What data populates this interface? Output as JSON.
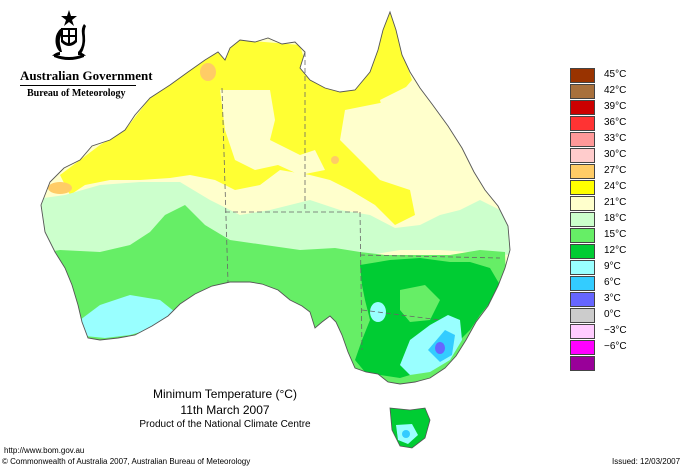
{
  "header": {
    "government": "Australian Government",
    "bureau": "Bureau of Meteorology"
  },
  "map": {
    "title": "Minimum Temperature (°C)",
    "date": "11th March 2007",
    "product": "Product of the National Climate Centre",
    "background": "#ffffff",
    "ocean": "white",
    "border_color": "#555555"
  },
  "legend": {
    "items": [
      {
        "label": "45°C",
        "color": "#993300"
      },
      {
        "label": "42°C",
        "color": "#a8703c"
      },
      {
        "label": "39°C",
        "color": "#cc0000"
      },
      {
        "label": "36°C",
        "color": "#ff3333"
      },
      {
        "label": "33°C",
        "color": "#ff9999"
      },
      {
        "label": "30°C",
        "color": "#ffcccc"
      },
      {
        "label": "27°C",
        "color": "#ffcc66"
      },
      {
        "label": "24°C",
        "color": "#ffff00"
      },
      {
        "label": "21°C",
        "color": "#ffffcc"
      },
      {
        "label": "18°C",
        "color": "#ccffcc"
      },
      {
        "label": "15°C",
        "color": "#66ee66"
      },
      {
        "label": "12°C",
        "color": "#00cc33"
      },
      {
        "label": "9°C",
        "color": "#99ffff"
      },
      {
        "label": "6°C",
        "color": "#33ccff"
      },
      {
        "label": "3°C",
        "color": "#6666ff"
      },
      {
        "label": "0°C",
        "color": "#cccccc"
      },
      {
        "label": "−3°C",
        "color": "#ffccff"
      },
      {
        "label": "−6°C",
        "color": "#ff00ff"
      },
      {
        "label": "",
        "color": "#990099"
      }
    ]
  },
  "footer": {
    "url": "http://www.bom.gov.au",
    "copyright": "© Commonwealth of Australia 2007, Australian Bureau of Meteorology",
    "issued": "Issued: 12/03/2007"
  }
}
